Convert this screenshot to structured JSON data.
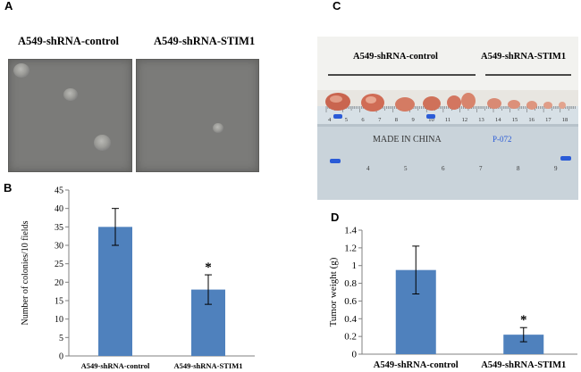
{
  "panels": {
    "a": {
      "letter": "A",
      "captions": [
        "A549-shRNA-control",
        "A549-shRNA-STIM1"
      ]
    },
    "b": {
      "letter": "B"
    },
    "c": {
      "letter": "C",
      "labels": [
        "A549-shRNA-control",
        "A549-shRNA-STIM1"
      ],
      "ruler_text": "MADE IN CHINA",
      "ruler_code": "P-072",
      "ruler_numbers_top": [
        "4",
        "5",
        "6",
        "7",
        "8",
        "9",
        "10",
        "11",
        "12",
        "13",
        "14",
        "15",
        "16",
        "17",
        "18"
      ],
      "ruler_numbers_bottom": [
        "4",
        "5",
        "6",
        "7",
        "8",
        "9"
      ]
    },
    "d": {
      "letter": "D"
    }
  },
  "chart_data": [
    {
      "type": "bar",
      "panel": "B",
      "categories": [
        "A549-shRNA-control",
        "A549-shRNA-STIM1"
      ],
      "values": [
        35,
        18
      ],
      "error": [
        5,
        4
      ],
      "annotations": [
        "",
        "*"
      ],
      "ylabel": "Number of colonies/10 fields",
      "ylim": [
        0,
        45
      ],
      "yticks": [
        0,
        5,
        10,
        15,
        20,
        25,
        30,
        35,
        40,
        45
      ],
      "bar_color": "#4f81bd",
      "grid": false
    },
    {
      "type": "bar",
      "panel": "D",
      "categories": [
        "A549-shRNA-control",
        "A549-shRNA-STIM1"
      ],
      "values": [
        0.95,
        0.22
      ],
      "error": [
        0.27,
        0.08
      ],
      "annotations": [
        "",
        "*"
      ],
      "ylabel": "Tumor weight (g)",
      "ylim": [
        0,
        1.4
      ],
      "yticks": [
        "0",
        "0.2",
        "0.4",
        "0.6",
        "0.8",
        "1",
        "1.2",
        "1.4"
      ],
      "bar_color": "#4f81bd",
      "grid": false
    }
  ]
}
